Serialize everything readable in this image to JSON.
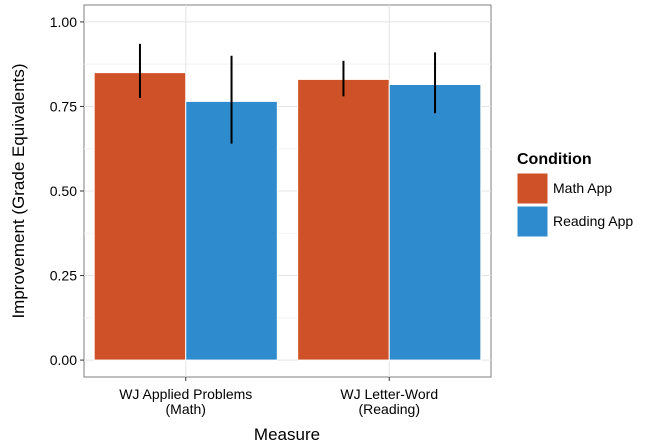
{
  "chart_data": {
    "type": "bar",
    "xlabel": "Measure",
    "ylabel": "Improvement (Grade Equivalents)",
    "categories": [
      [
        "WJ Applied Problems",
        "(Math)"
      ],
      [
        "WJ Letter-Word",
        "(Reading)"
      ]
    ],
    "series": [
      {
        "name": "Math App",
        "color": "#CF5127",
        "values": [
          0.85,
          0.83
        ],
        "error_low": [
          0.775,
          0.78
        ],
        "error_high": [
          0.935,
          0.885
        ]
      },
      {
        "name": "Reading App",
        "color": "#2E8BCD",
        "values": [
          0.765,
          0.815
        ],
        "error_low": [
          0.64,
          0.73
        ],
        "error_high": [
          0.9,
          0.91
        ]
      }
    ],
    "ylim": [
      -0.05,
      1.05
    ],
    "yticks": [
      "0.00",
      "0.25",
      "0.50",
      "0.75",
      "1.00"
    ],
    "grid": true,
    "legend": {
      "title": "Condition",
      "placement": "right"
    }
  }
}
